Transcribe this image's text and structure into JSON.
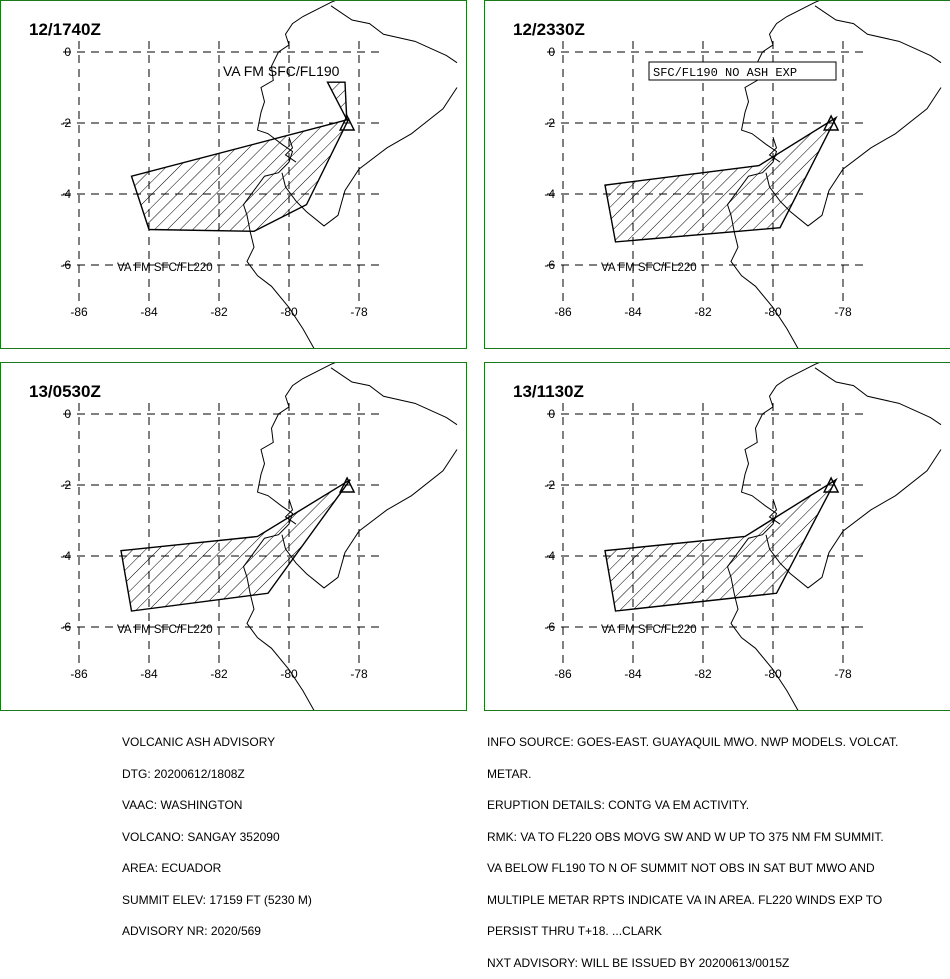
{
  "panels": [
    {
      "time": "12/1740Z",
      "area_label": "VA FM SFC/FL220",
      "upper_label": "VA FM SFC/FL190",
      "boxed_label": ""
    },
    {
      "time": "12/2330Z",
      "area_label": "VA FM SFC/FL220",
      "upper_label": "",
      "boxed_label": "SFC/FL190 NO ASH EXP"
    },
    {
      "time": "13/0530Z",
      "area_label": "VA FM SFC/FL220",
      "upper_label": "",
      "boxed_label": ""
    },
    {
      "time": "13/1130Z",
      "area_label": "VA FM SFC/FL220",
      "upper_label": "",
      "boxed_label": ""
    }
  ],
  "axes": {
    "x_ticks": [
      "-86",
      "-84",
      "-82",
      "-80",
      "-78"
    ],
    "y_ticks": [
      "0",
      "-2",
      "-4",
      "-6"
    ]
  },
  "advisory": {
    "lines": [
      "VOLCANIC ASH ADVISORY",
      "DTG: 20200612/1808Z",
      "VAAC: WASHINGTON",
      "VOLCANO: SANGAY 352090",
      "AREA: ECUADOR",
      "SUMMIT ELEV: 17159 FT (5230 M)",
      "ADVISORY NR: 2020/569"
    ]
  },
  "info": {
    "lines": [
      "INFO SOURCE: GOES-EAST. GUAYAQUIL MWO. NWP MODELS. VOLCAT.",
      "METAR.",
      "ERUPTION DETAILS: CONTG VA EM ACTIVITY.",
      "RMK: VA TO FL220 OBS MOVG SW AND W UP TO 375 NM FM SUMMIT.",
      "VA BELOW FL190 TO N OF SUMMIT NOT OBS IN SAT BUT MWO AND",
      "MULTIPLE METAR RPTS INDICATE VA IN AREA. FL220 WINDS EXP TO",
      "PERSIST THRU T+18. ...CLARK",
      "NXT ADVISORY: WILL BE ISSUED BY 20200613/0015Z"
    ]
  },
  "map_data": {
    "volcano": {
      "name": "SANGAY",
      "lon": -78.34,
      "lat": -2.0
    },
    "ash_polygons": [
      [
        [
          -84.5,
          -3.5
        ],
        [
          -84.0,
          -5.0
        ],
        [
          -81.0,
          -5.05
        ],
        [
          -79.5,
          -4.3
        ],
        [
          -78.3,
          -1.9
        ],
        [
          -84.5,
          -3.5
        ]
      ],
      [
        [
          -84.8,
          -3.75
        ],
        [
          -84.5,
          -5.35
        ],
        [
          -79.8,
          -4.95
        ],
        [
          -78.2,
          -1.85
        ],
        [
          -80.4,
          -3.2
        ],
        [
          -84.8,
          -3.75
        ]
      ],
      [
        [
          -84.8,
          -3.85
        ],
        [
          -84.5,
          -5.55
        ],
        [
          -80.6,
          -5.05
        ],
        [
          -78.25,
          -1.85
        ],
        [
          -80.9,
          -3.45
        ],
        [
          -84.8,
          -3.85
        ]
      ],
      [
        [
          -84.8,
          -3.85
        ],
        [
          -84.5,
          -5.55
        ],
        [
          -79.9,
          -5.05
        ],
        [
          -78.2,
          -1.85
        ],
        [
          -80.8,
          -3.45
        ],
        [
          -84.8,
          -3.85
        ]
      ]
    ],
    "upper_polygon": [
      [
        -78.9,
        -0.85
      ],
      [
        -78.4,
        -0.85
      ],
      [
        -78.35,
        -1.9
      ],
      [
        -78.9,
        -0.85
      ]
    ]
  }
}
